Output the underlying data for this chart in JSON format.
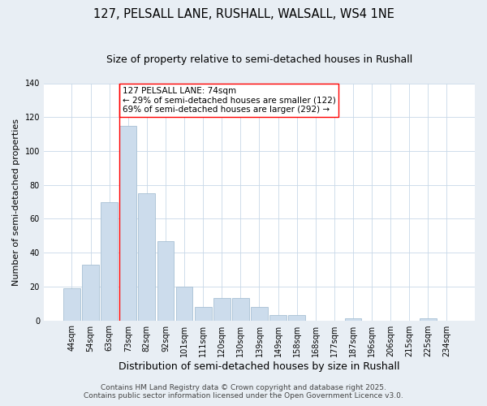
{
  "title": "127, PELSALL LANE, RUSHALL, WALSALL, WS4 1NE",
  "subtitle": "Size of property relative to semi-detached houses in Rushall",
  "xlabel": "Distribution of semi-detached houses by size in Rushall",
  "ylabel": "Number of semi-detached properties",
  "categories": [
    "44sqm",
    "54sqm",
    "63sqm",
    "73sqm",
    "82sqm",
    "92sqm",
    "101sqm",
    "111sqm",
    "120sqm",
    "130sqm",
    "139sqm",
    "149sqm",
    "158sqm",
    "168sqm",
    "177sqm",
    "187sqm",
    "196sqm",
    "206sqm",
    "215sqm",
    "225sqm",
    "234sqm"
  ],
  "values": [
    19,
    33,
    70,
    115,
    75,
    47,
    20,
    8,
    13,
    13,
    8,
    3,
    3,
    0,
    0,
    1,
    0,
    0,
    0,
    1,
    0
  ],
  "bar_color": "#ccdcec",
  "bar_edge_color": "#a8c0d4",
  "red_line_index": 3,
  "annotation_line1": "127 PELSALL LANE: 74sqm",
  "annotation_line2": "← 29% of semi-detached houses are smaller (122)",
  "annotation_line3": "69% of semi-detached houses are larger (292) →",
  "ylim": [
    0,
    140
  ],
  "yticks": [
    0,
    20,
    40,
    60,
    80,
    100,
    120,
    140
  ],
  "footer1": "Contains HM Land Registry data © Crown copyright and database right 2025.",
  "footer2": "Contains public sector information licensed under the Open Government Licence v3.0.",
  "background_color": "#e8eef4",
  "plot_background_color": "#ffffff",
  "grid_color": "#c8d8e8",
  "title_fontsize": 10.5,
  "subtitle_fontsize": 9,
  "xlabel_fontsize": 9,
  "ylabel_fontsize": 8,
  "tick_fontsize": 7,
  "annotation_fontsize": 7.5,
  "footer_fontsize": 6.5
}
